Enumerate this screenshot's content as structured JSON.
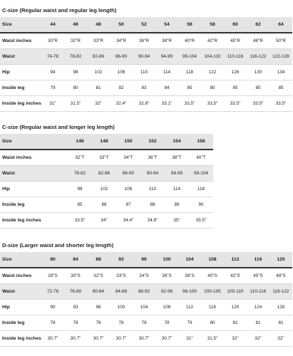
{
  "sections": [
    {
      "title": "C-size (Regular waist and regular leg length)",
      "size_label": "Size",
      "sizes": [
        "44",
        "46",
        "48",
        "50",
        "52",
        "54",
        "56",
        "58",
        "60",
        "62",
        "64"
      ],
      "rows": [
        {
          "label": "Waist inches",
          "values": [
            "30\"R",
            "32\"R",
            "33\"R",
            "34\"R",
            "36\"R",
            "38\"R",
            "40\"R",
            "42\"R",
            "45\"R",
            "48\"R",
            "50\"R"
          ]
        },
        {
          "label": "Waist",
          "values": [
            "74-78",
            "78-82",
            "82-86",
            "86-90",
            "90-94",
            "94-99",
            "99-104",
            "104-110",
            "110-116",
            "116-122",
            "122-128"
          ]
        },
        {
          "label": "Hip",
          "values": [
            "94",
            "98",
            "102",
            "106",
            "110",
            "114",
            "118",
            "122",
            "126",
            "130",
            "134"
          ]
        },
        {
          "label": "Inside leg",
          "values": [
            "79",
            "80",
            "81",
            "82",
            "83",
            "84",
            "85",
            "85",
            "85",
            "85",
            "85"
          ]
        },
        {
          "label": "Inside leg inches",
          "values": [
            "31\"",
            "31.5\"",
            "32\"",
            "32.4\"",
            "32.8\"",
            "33.1\"",
            "33.5\"",
            "33.5\"",
            "33.5\"",
            "33.5\"",
            "33.5\""
          ]
        }
      ]
    },
    {
      "title": "C-size (Regular waist and longer leg length)",
      "size_label": "Size",
      "sizes": [
        "146",
        "148",
        "150",
        "152",
        "154",
        "156"
      ],
      "rows": [
        {
          "label": "Waist inches",
          "values": [
            "32\"T",
            "33\"T",
            "34\"T",
            "36\"T",
            "38\"T",
            "40\"T"
          ]
        },
        {
          "label": "Waist",
          "values": [
            "78-82",
            "82-86",
            "86-90",
            "90-94",
            "94-99",
            "99-104"
          ]
        },
        {
          "label": "Hip",
          "values": [
            "98",
            "102",
            "106",
            "110",
            "114",
            "118"
          ]
        },
        {
          "label": "Inside leg",
          "values": [
            "85",
            "86",
            "87",
            "88",
            "89",
            "90"
          ]
        },
        {
          "label": "Inside leg inches",
          "values": [
            "33.5\"",
            "34\"",
            "34.4\"",
            "34.8\"",
            "35\"",
            "35.5\""
          ]
        }
      ]
    },
    {
      "title": "D-size (Larger waist and shorter leg length)",
      "size_label": "Size",
      "sizes": [
        "80",
        "84",
        "88",
        "92",
        "96",
        "100",
        "104",
        "108",
        "112",
        "116",
        "120"
      ],
      "rows": [
        {
          "label": "Waist inches",
          "values": [
            "28\"S",
            "30\"S",
            "32\"S",
            "33\"S",
            "34\"S",
            "36\"S",
            "38\"S",
            "40\"S",
            "42\"S",
            "45\"S",
            "48\"S"
          ]
        },
        {
          "label": "Waist",
          "values": [
            "72-76",
            "76-80",
            "80-84",
            "84-88",
            "88-92",
            "92-96",
            "96-100",
            "100-105",
            "105-110",
            "110-116",
            "116-122"
          ]
        },
        {
          "label": "Hip",
          "values": [
            "90",
            "93",
            "96",
            "100",
            "104",
            "108",
            "112",
            "116",
            "120",
            "124",
            "128"
          ]
        },
        {
          "label": "Inside leg",
          "values": [
            "78",
            "78",
            "78",
            "78",
            "78",
            "78",
            "79",
            "80",
            "81",
            "81",
            "81"
          ]
        },
        {
          "label": "Inside leg inches",
          "values": [
            "30.7\"",
            "30.7\"",
            "30.7\"",
            "30.7\"",
            "30.7\"",
            "30.7\"",
            "31\"",
            "31.5\"",
            "32\"",
            "32\"",
            "32\""
          ]
        }
      ]
    }
  ]
}
